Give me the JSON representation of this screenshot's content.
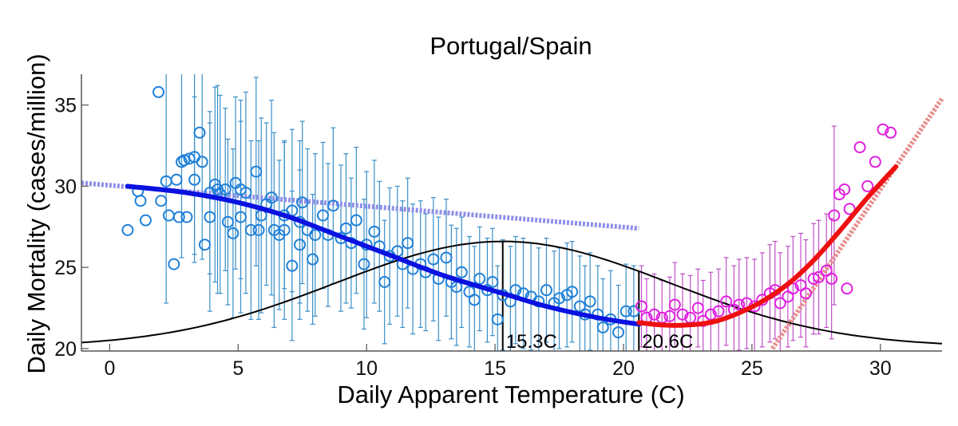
{
  "chart_data": {
    "type": "scatter",
    "title": "Portugal/Spain",
    "xlabel": "Daily Apparent Temperature (C)",
    "ylabel": "Daily Mortality (cases/million)",
    "xlim": [
      -1.1,
      32.4
    ],
    "ylim": [
      19.85,
      36.9
    ],
    "xticks": [
      "0",
      "5",
      "10",
      "15",
      "20",
      "25",
      "30"
    ],
    "yticks": [
      "20",
      "25",
      "30",
      "35"
    ],
    "grid": false,
    "colors": {
      "cold_points": "#1f80d8",
      "cold_errorbars": "#3a8fc8",
      "warm_points": "#e020e0",
      "warm_errorbars": "#c050c8",
      "cold_fit": "#0a12e0",
      "warm_fit": "#ee1010",
      "cold_linear": "#8f8fe8",
      "warm_linear": "#e88c8c",
      "density": "#000000"
    },
    "thresholds": [
      {
        "x": 15.3,
        "label": "15.3C"
      },
      {
        "x": 20.6,
        "label": "20.6C"
      }
    ],
    "cold_points": [
      [
        0.7,
        27.3,
        0
      ],
      [
        1.1,
        29.7,
        0
      ],
      [
        1.2,
        29.1,
        0
      ],
      [
        1.4,
        27.9,
        0
      ],
      [
        1.9,
        35.8,
        0
      ],
      [
        2.0,
        29.1,
        0
      ],
      [
        2.2,
        30.3,
        7.5
      ],
      [
        2.3,
        28.2,
        0
      ],
      [
        2.5,
        25.2,
        0
      ],
      [
        2.6,
        30.4,
        0
      ],
      [
        2.7,
        28.1,
        0
      ],
      [
        2.8,
        31.5,
        5.9
      ],
      [
        2.9,
        31.6,
        0
      ],
      [
        3.0,
        28.1,
        0
      ],
      [
        3.1,
        31.7,
        0
      ],
      [
        3.3,
        30.4,
        5.1
      ],
      [
        3.3,
        31.8,
        6.0
      ],
      [
        3.5,
        33.3,
        0
      ],
      [
        3.6,
        31.5,
        6.0
      ],
      [
        3.7,
        26.4,
        0
      ],
      [
        3.9,
        29.6,
        5.0
      ],
      [
        3.9,
        28.1,
        5.8
      ],
      [
        4.1,
        30.1,
        6.0
      ],
      [
        4.2,
        29.8,
        6.4
      ],
      [
        4.3,
        29.5,
        6.1
      ],
      [
        4.5,
        29.8,
        5.0
      ],
      [
        4.6,
        27.8,
        5.1
      ],
      [
        4.8,
        27.1,
        5.2
      ],
      [
        4.9,
        30.2,
        5.3
      ],
      [
        5.1,
        28.1,
        5.9
      ],
      [
        5.1,
        29.8,
        5.5
      ],
      [
        5.3,
        29.6,
        6.2
      ],
      [
        5.5,
        27.3,
        5.5
      ],
      [
        5.7,
        30.9,
        5.8
      ],
      [
        5.8,
        27.3,
        5.5
      ],
      [
        5.9,
        28.2,
        6.0
      ],
      [
        6.1,
        28.9,
        5.0
      ],
      [
        6.3,
        29.3,
        6.0
      ],
      [
        6.4,
        27.3,
        6.0
      ],
      [
        6.6,
        27.0,
        4.6
      ],
      [
        6.8,
        27.3,
        5.5
      ],
      [
        6.8,
        28.2,
        4.5
      ],
      [
        7.1,
        25.1,
        4.6
      ],
      [
        7.1,
        28.5,
        5.0
      ],
      [
        7.4,
        27.8,
        5.0
      ],
      [
        7.4,
        26.4,
        4.6
      ],
      [
        7.5,
        29.0,
        5.0
      ],
      [
        7.7,
        27.3,
        5.0
      ],
      [
        7.9,
        25.5,
        4.0
      ],
      [
        8.0,
        27.0,
        5.0
      ],
      [
        8.3,
        28.2,
        4.5
      ],
      [
        8.5,
        27.0,
        4.4
      ],
      [
        8.7,
        28.8,
        4.8
      ],
      [
        9.0,
        26.8,
        4.5
      ],
      [
        9.2,
        27.4,
        4.6
      ],
      [
        9.4,
        26.5,
        4.0
      ],
      [
        9.6,
        27.9,
        4.5
      ],
      [
        9.9,
        25.2,
        4.0
      ],
      [
        10.0,
        26.4,
        4.5
      ],
      [
        10.3,
        27.2,
        4.4
      ],
      [
        10.5,
        26.3,
        4.0
      ],
      [
        10.7,
        24.1,
        3.8
      ],
      [
        10.9,
        25.7,
        4.2
      ],
      [
        11.2,
        26.0,
        4.0
      ],
      [
        11.4,
        25.2,
        3.9
      ],
      [
        11.6,
        26.5,
        4.0
      ],
      [
        11.8,
        24.9,
        4.0
      ],
      [
        12.1,
        25.2,
        3.9
      ],
      [
        12.3,
        24.7,
        3.6
      ],
      [
        12.6,
        25.5,
        3.8
      ],
      [
        12.8,
        24.3,
        3.8
      ],
      [
        13.1,
        25.6,
        3.6
      ],
      [
        13.3,
        24.1,
        3.5
      ],
      [
        13.5,
        23.8,
        3.6
      ],
      [
        13.7,
        24.7,
        3.4
      ],
      [
        14.0,
        23.5,
        3.4
      ],
      [
        14.2,
        23.0,
        3.3
      ],
      [
        14.4,
        24.3,
        3.2
      ],
      [
        14.7,
        23.6,
        3.2
      ],
      [
        14.9,
        24.1,
        3.3
      ],
      [
        15.1,
        21.8,
        3.3
      ],
      [
        15.3,
        23.3,
        3.4
      ],
      [
        15.6,
        22.9,
        3.4
      ],
      [
        15.8,
        23.6,
        3.3
      ],
      [
        16.1,
        23.4,
        3.4
      ],
      [
        16.4,
        23.2,
        3.3
      ],
      [
        16.7,
        22.9,
        3.3
      ],
      [
        17.0,
        23.6,
        3.2
      ],
      [
        17.3,
        22.8,
        3.2
      ],
      [
        17.5,
        23.1,
        3.1
      ],
      [
        17.8,
        23.3,
        3.2
      ],
      [
        18.0,
        23.5,
        3.1
      ],
      [
        18.3,
        22.6,
        3.1
      ],
      [
        18.5,
        22.1,
        3.0
      ],
      [
        18.7,
        22.9,
        3.0
      ],
      [
        19.0,
        22.1,
        3.0
      ],
      [
        19.2,
        21.3,
        3.0
      ],
      [
        19.5,
        21.8,
        3.0
      ],
      [
        19.8,
        21.0,
        2.9
      ],
      [
        20.1,
        22.3,
        2.9
      ],
      [
        20.4,
        22.3,
        2.8
      ]
    ],
    "warm_points": [
      [
        20.7,
        22.6,
        2.5
      ],
      [
        20.9,
        21.9,
        2.4
      ],
      [
        21.2,
        22.1,
        2.5
      ],
      [
        21.5,
        21.9,
        2.3
      ],
      [
        21.8,
        22.0,
        2.4
      ],
      [
        22.0,
        22.7,
        2.6
      ],
      [
        22.3,
        22.1,
        2.5
      ],
      [
        22.6,
        21.9,
        2.6
      ],
      [
        22.9,
        22.5,
        2.4
      ],
      [
        23.1,
        21.7,
        2.5
      ],
      [
        23.4,
        22.1,
        2.6
      ],
      [
        23.7,
        22.3,
        2.6
      ],
      [
        24.0,
        22.9,
        2.7
      ],
      [
        24.3,
        22.4,
        2.7
      ],
      [
        24.5,
        22.7,
        2.8
      ],
      [
        24.8,
        22.8,
        2.8
      ],
      [
        25.1,
        22.6,
        2.9
      ],
      [
        25.4,
        23.0,
        2.9
      ],
      [
        25.7,
        23.4,
        3.0
      ],
      [
        25.9,
        23.6,
        3.0
      ],
      [
        26.1,
        22.8,
        3.1
      ],
      [
        26.4,
        23.2,
        3.1
      ],
      [
        26.6,
        23.7,
        3.2
      ],
      [
        26.9,
        23.9,
        3.2
      ],
      [
        27.1,
        23.4,
        3.3
      ],
      [
        27.4,
        24.3,
        3.4
      ],
      [
        27.6,
        24.4,
        3.5
      ],
      [
        27.9,
        24.8,
        3.5
      ],
      [
        28.1,
        24.3,
        3.7
      ],
      [
        28.2,
        28.2,
        5.5
      ],
      [
        28.4,
        29.5,
        0
      ],
      [
        28.6,
        29.8,
        0
      ],
      [
        28.7,
        23.7,
        0
      ],
      [
        28.8,
        28.6,
        0
      ],
      [
        29.2,
        32.4,
        0
      ],
      [
        29.5,
        30.0,
        0
      ],
      [
        29.8,
        31.5,
        0
      ],
      [
        30.1,
        33.5,
        0
      ],
      [
        30.4,
        33.3,
        0
      ]
    ],
    "cold_fit": [
      [
        0.7,
        30.0
      ],
      [
        3,
        29.6
      ],
      [
        5,
        29.0
      ],
      [
        7,
        28.1
      ],
      [
        9,
        26.9
      ],
      [
        11,
        25.7
      ],
      [
        13,
        24.5
      ],
      [
        15.3,
        23.4
      ],
      [
        17,
        22.6
      ],
      [
        19,
        21.9
      ],
      [
        20.6,
        21.5
      ]
    ],
    "warm_fit": [
      [
        20.6,
        21.6
      ],
      [
        21.5,
        21.45
      ],
      [
        22.5,
        21.45
      ],
      [
        23.5,
        21.65
      ],
      [
        24.5,
        22.2
      ],
      [
        25.5,
        23.0
      ],
      [
        26.5,
        24.1
      ],
      [
        27.5,
        25.6
      ],
      [
        28.5,
        27.4
      ],
      [
        29.5,
        29.3
      ],
      [
        30.6,
        31.2
      ]
    ],
    "cold_linear": [
      [
        -1.1,
        30.2
      ],
      [
        20.6,
        27.4
      ]
    ],
    "warm_linear": [
      [
        25.8,
        20.0
      ],
      [
        32.4,
        35.4
      ]
    ],
    "density": {
      "peak_x": 15.3,
      "baseline": 20.1,
      "amplitude": 6.5,
      "sigma": 6.5
    }
  }
}
